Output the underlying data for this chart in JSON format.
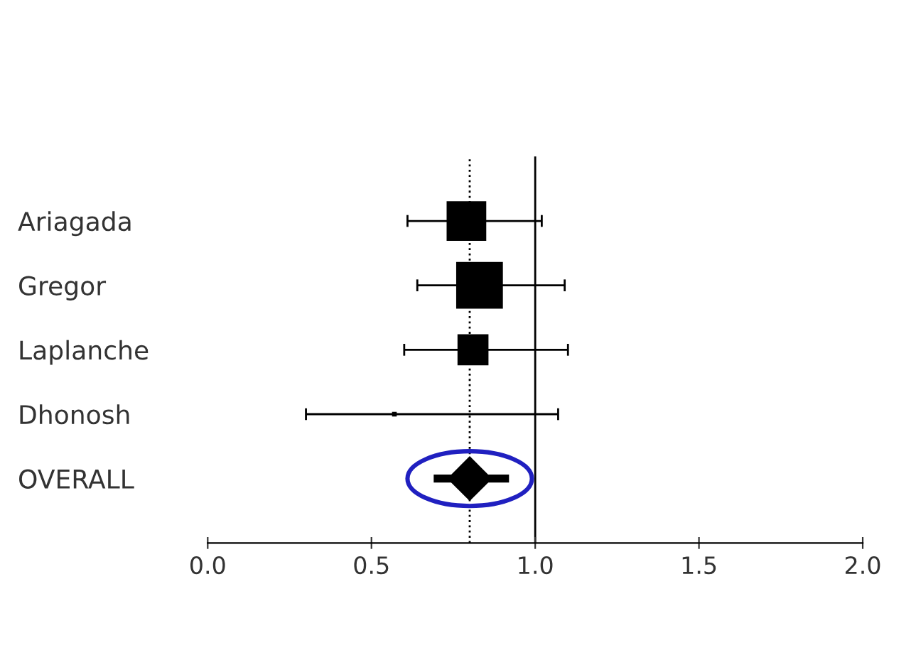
{
  "chart_data": {
    "type": "bubble",
    "orientation": "horizontal",
    "categories": [
      "Ariagada",
      "Gregor",
      "Laplanche",
      "Dhonosh",
      "OVERALL"
    ],
    "series": [
      {
        "color": "#000000",
        "marker": "square",
        "values": [
          0.79,
          0.83,
          0.81,
          0.57,
          null
        ],
        "sizes": [
          0.72,
          1,
          0.44,
          0.01,
          null
        ],
        "errors": [
          [
            0.61,
            1.02
          ],
          [
            0.64,
            1.09
          ],
          [
            0.6,
            1.1
          ],
          [
            0.3,
            1.07
          ],
          null
        ]
      },
      {
        "type": "scatter",
        "color": "#000000",
        "marker": "diamond",
        "values": [
          null,
          null,
          null,
          null,
          0.8
        ],
        "errors": [
          null,
          null,
          null,
          null,
          [
            0.69,
            0.92
          ]
        ]
      }
    ],
    "xlim": [
      0,
      2
    ],
    "xticks": [
      {
        "value": 0,
        "label": "0.0"
      },
      {
        "value": 0.5,
        "label": "0.5"
      },
      {
        "value": 1,
        "label": "1.0"
      },
      {
        "value": 1.5,
        "label": "1.5"
      },
      {
        "value": 2,
        "label": "2.0"
      }
    ],
    "ref_lines": [
      {
        "axis": "x",
        "value": 1,
        "color": "#000000",
        "line_style": "solid"
      },
      {
        "axis": "x",
        "value": 0.8,
        "color": "#000000",
        "line_style": "dotted"
      }
    ],
    "grid": false,
    "legend": false
  }
}
